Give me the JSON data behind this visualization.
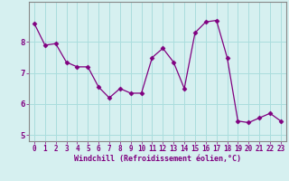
{
  "x": [
    0,
    1,
    2,
    3,
    4,
    5,
    6,
    7,
    8,
    9,
    10,
    11,
    12,
    13,
    14,
    15,
    16,
    17,
    18,
    19,
    20,
    21,
    22,
    23
  ],
  "y": [
    8.6,
    7.9,
    7.95,
    7.35,
    7.2,
    7.2,
    6.55,
    6.2,
    6.5,
    6.35,
    6.35,
    7.5,
    7.8,
    7.35,
    6.5,
    8.3,
    8.65,
    8.7,
    7.5,
    5.45,
    5.4,
    5.55,
    5.7,
    5.45
  ],
  "line_color": "#800080",
  "marker": "D",
  "marker_size": 2.5,
  "bg_color": "#d6f0f0",
  "grid_color": "#aadddd",
  "xlabel": "Windchill (Refroidissement éolien,°C)",
  "ylim": [
    4.8,
    9.3
  ],
  "xlim": [
    -0.5,
    23.5
  ],
  "yticks": [
    5,
    6,
    7,
    8
  ],
  "xticks": [
    0,
    1,
    2,
    3,
    4,
    5,
    6,
    7,
    8,
    9,
    10,
    11,
    12,
    13,
    14,
    15,
    16,
    17,
    18,
    19,
    20,
    21,
    22,
    23
  ],
  "tick_fontsize": 5.5,
  "xlabel_fontsize": 6.0,
  "spine_color": "#888888"
}
